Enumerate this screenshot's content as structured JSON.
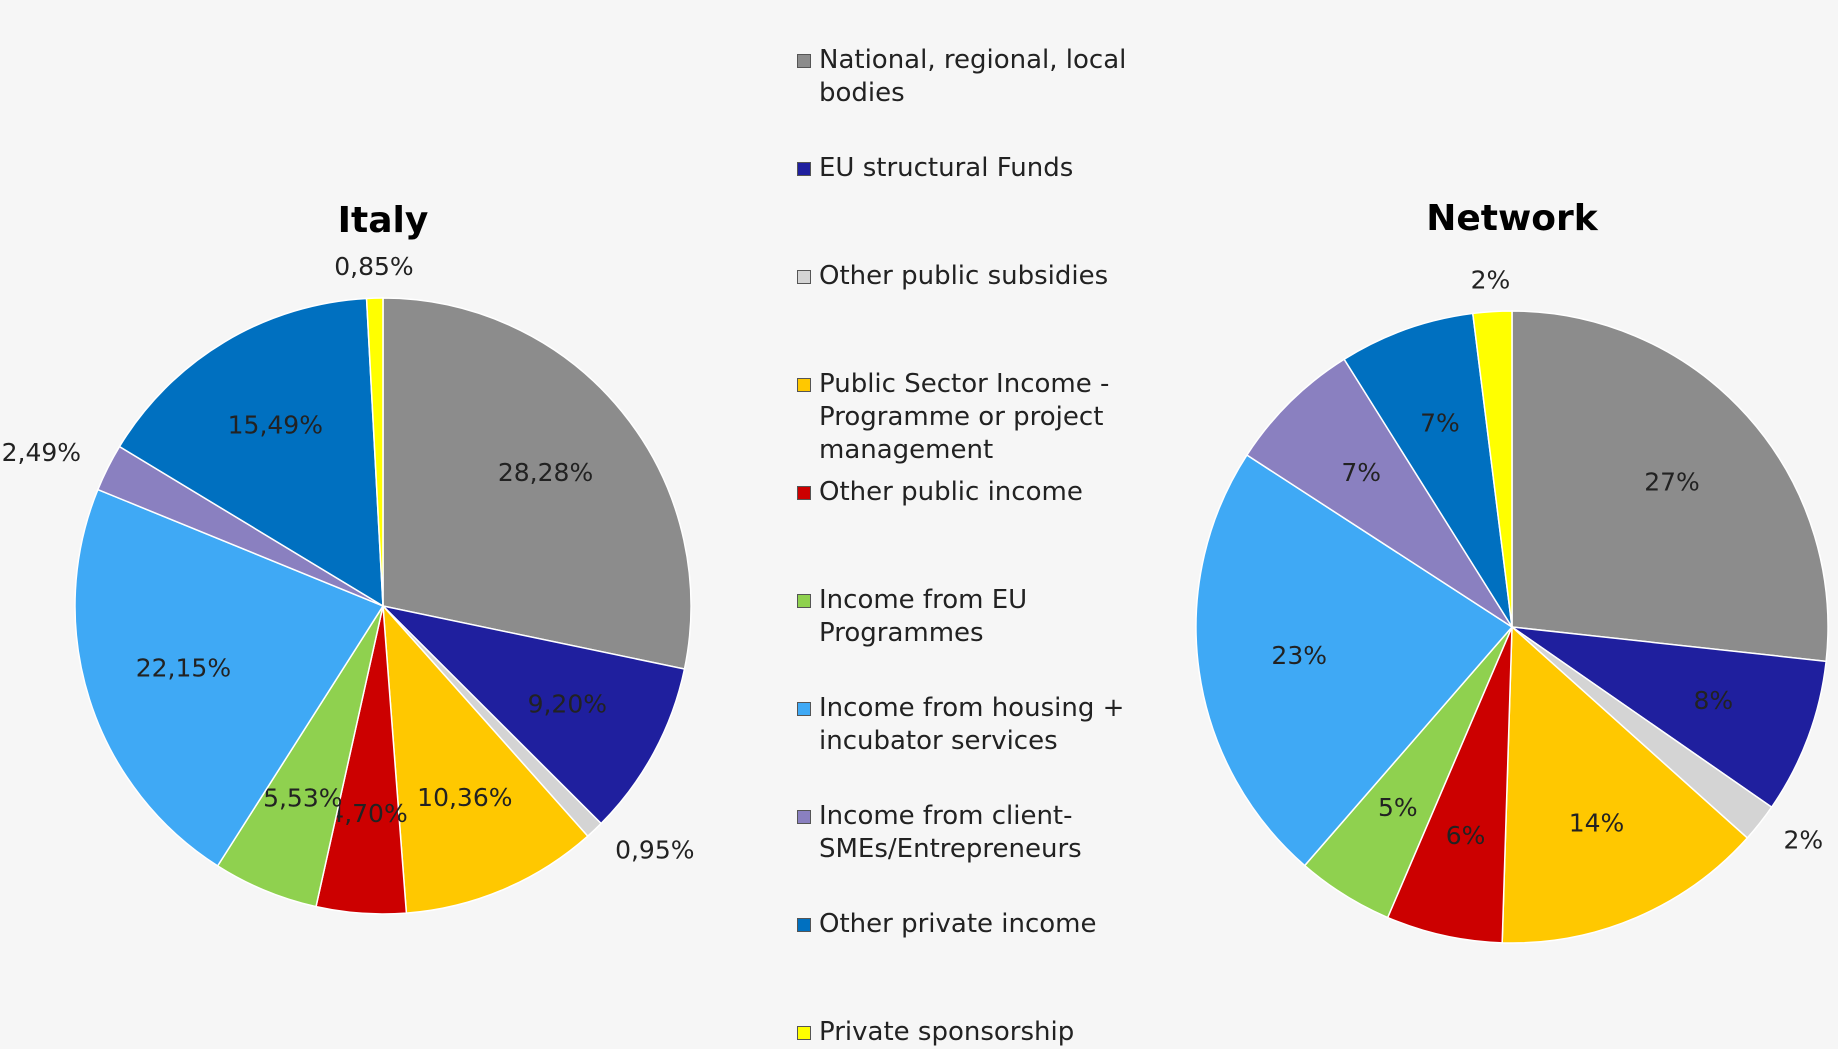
{
  "chart_data": [
    {
      "type": "pie",
      "title": "Italy",
      "categories": [
        "National, regional, local bodies",
        "EU structural Funds",
        "Other public subsidies",
        "Public Sector Income - Programme or project management",
        "Other public income",
        "Income from EU Programmes",
        "Income from housing + incubator services",
        "Income from client-SMEs/Entrepreneurs",
        "Other private income",
        "Private sponsorship"
      ],
      "values": [
        28.28,
        9.2,
        0.95,
        10.36,
        4.7,
        5.53,
        22.15,
        2.49,
        15.49,
        0.85
      ],
      "value_labels": [
        "28,28%",
        "9,20%",
        "0,95%",
        "10,36%",
        "4,70%",
        "5,53%",
        "22,15%",
        "2,49%",
        "15,49%",
        "0,85%"
      ],
      "colors": [
        "#8c8c8c",
        "#1f1f9e",
        "#d4d4d4",
        "#ffc800",
        "#cc0000",
        "#8fd14f",
        "#3fa9f5",
        "#8a80c0",
        "#0070c0",
        "#ffff00"
      ],
      "legend": true
    },
    {
      "type": "pie",
      "title": "Network",
      "categories": [
        "National, regional, local bodies",
        "EU structural Funds",
        "Other public subsidies",
        "Public Sector Income - Programme or project management",
        "Other public income",
        "Income from EU Programmes",
        "Income from housing + incubator services",
        "Income from client-SMEs/Entrepreneurs",
        "Other private income",
        "Private sponsorship"
      ],
      "values": [
        27,
        8,
        2,
        14,
        6,
        5,
        23,
        7,
        7,
        2
      ],
      "value_labels": [
        "27%",
        "8%",
        "2%",
        "14%",
        "6%",
        "5%",
        "23%",
        "7%",
        "7%",
        "2%"
      ],
      "colors": [
        "#8c8c8c",
        "#1f1f9e",
        "#d4d4d4",
        "#ffc800",
        "#cc0000",
        "#8fd14f",
        "#3fa9f5",
        "#8a80c0",
        "#0070c0",
        "#ffff00"
      ],
      "legend": false
    }
  ]
}
